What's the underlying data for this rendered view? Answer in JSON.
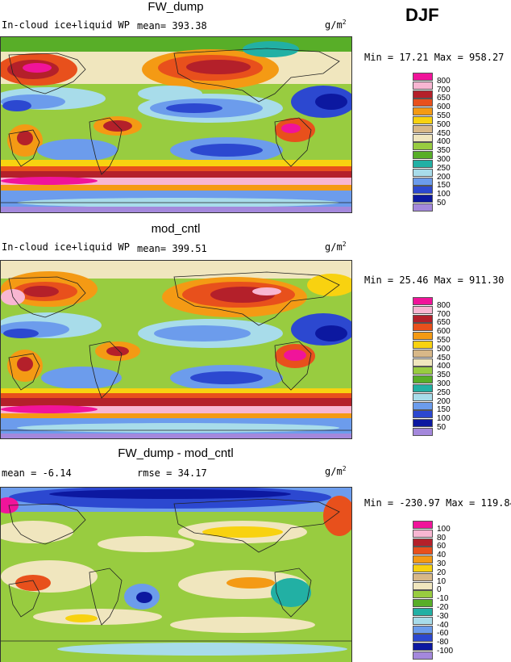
{
  "season": "DJF",
  "unit_base": "g/m",
  "unit_exp": "2",
  "panels": [
    {
      "title": "FW_dump",
      "variable": "In-cloud ice+liquid WP",
      "stat_text": "mean=  393.38",
      "minmax": "Min =   17.21  Max = 958.27",
      "type": "abs"
    },
    {
      "title": "mod_cntl",
      "variable": "In-cloud ice+liquid WP",
      "stat_text": "mean=  399.51",
      "minmax": "Min =   25.46  Max = 911.30",
      "type": "abs"
    },
    {
      "title": "FW_dump - mod_cntl",
      "variable": "",
      "stat_text": "mean =  -6.14",
      "rmse_text": "rmse =  34.17",
      "minmax": "Min = -230.97  Max = 119.84",
      "type": "diff"
    }
  ],
  "colorbar_abs": {
    "labels": [
      "800",
      "700",
      "650",
      "600",
      "550",
      "500",
      "450",
      "400",
      "350",
      "300",
      "250",
      "200",
      "150",
      "100",
      "50"
    ],
    "colors": [
      "#f0149a",
      "#f8b6d2",
      "#b4202a",
      "#e8501c",
      "#f49a14",
      "#f8d210",
      "#d8b888",
      "#f0e6be",
      "#98cc40",
      "#58ae28",
      "#22b0a4",
      "#a8dcea",
      "#6c9cec",
      "#2c48d0",
      "#0c18a0",
      "#a488dc"
    ]
  },
  "colorbar_diff": {
    "labels": [
      "100",
      "80",
      "60",
      "40",
      "30",
      "20",
      "10",
      "0",
      "-10",
      "-20",
      "-30",
      "-40",
      "-60",
      "-80",
      "-100"
    ],
    "colors": [
      "#f0149a",
      "#f8b6d2",
      "#b4202a",
      "#e8501c",
      "#f49a14",
      "#f8d210",
      "#d8b888",
      "#f0e6be",
      "#98cc40",
      "#58ae28",
      "#22b0a4",
      "#a8dcea",
      "#6c9cec",
      "#2c48d0",
      "#0c18a0",
      "#a488dc"
    ]
  },
  "chart_data": [
    {
      "type": "heatmap",
      "title": "FW_dump",
      "subtitle": "In-cloud ice+liquid WP",
      "mean": 393.38,
      "min": 17.21,
      "max": 958.27,
      "units": "g/m2",
      "levels": [
        50,
        100,
        150,
        200,
        250,
        300,
        350,
        400,
        450,
        500,
        550,
        600,
        650,
        700,
        800
      ]
    },
    {
      "type": "heatmap",
      "title": "mod_cntl",
      "subtitle": "In-cloud ice+liquid WP",
      "mean": 399.51,
      "min": 25.46,
      "max": 911.3,
      "units": "g/m2",
      "levels": [
        50,
        100,
        150,
        200,
        250,
        300,
        350,
        400,
        450,
        500,
        550,
        600,
        650,
        700,
        800
      ]
    },
    {
      "type": "heatmap",
      "title": "FW_dump - mod_cntl",
      "mean": -6.14,
      "rmse": 34.17,
      "min": -230.97,
      "max": 119.84,
      "units": "g/m2",
      "levels": [
        -100,
        -80,
        -60,
        -40,
        -30,
        -20,
        -10,
        0,
        10,
        20,
        30,
        40,
        60,
        80,
        100
      ]
    }
  ]
}
